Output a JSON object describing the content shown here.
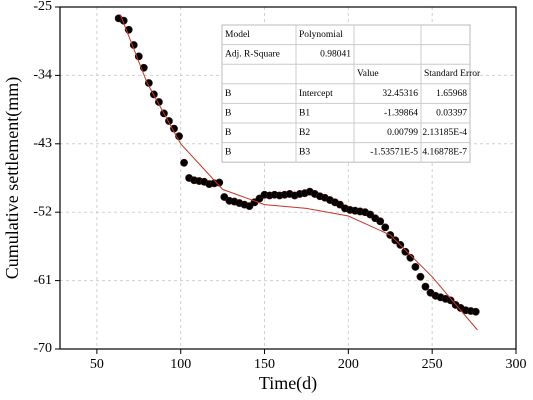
{
  "chart_data": {
    "type": "scatter",
    "x_label": "Time(d)",
    "y_label": "Cumulative settlement(mm)",
    "xlim": [
      28,
      300
    ],
    "xticks": [
      50,
      100,
      150,
      200,
      250,
      300
    ],
    "ylim": [
      -70,
      -25
    ],
    "yticks": [
      -70,
      -61,
      -52,
      -43,
      -34,
      -25
    ],
    "grid": true,
    "series": [
      {
        "type": "scatter",
        "color": "#000000",
        "x": [
          63,
          66,
          69,
          72,
          75,
          78,
          81,
          84,
          87,
          90,
          93,
          96,
          99,
          102,
          105,
          108,
          111,
          114,
          117,
          120,
          123,
          126,
          129,
          132,
          135,
          138,
          141,
          144,
          147,
          150,
          153,
          156,
          159,
          162,
          165,
          168,
          171,
          174,
          177,
          180,
          183,
          186,
          189,
          192,
          195,
          198,
          201,
          204,
          207,
          210,
          213,
          216,
          219,
          222,
          225,
          228,
          231,
          234,
          237,
          240,
          243,
          246,
          249,
          252,
          255,
          258,
          261,
          264,
          267,
          270,
          273,
          276
        ],
        "values": [
          -26.5,
          -26.8,
          -28,
          -30,
          -31.5,
          -33,
          -35,
          -36.5,
          -37.5,
          -39,
          -40,
          -41,
          -42,
          -45.5,
          -47.5,
          -47.8,
          -47.9,
          -48,
          -48.3,
          -48.2,
          -48.1,
          -50,
          -50.5,
          -50.6,
          -50.8,
          -51,
          -51.2,
          -50.7,
          -50.2,
          -49.7,
          -49.8,
          -49.7,
          -49.8,
          -49.7,
          -49.6,
          -49.8,
          -49.6,
          -49.5,
          -49.3,
          -49.6,
          -49.9,
          -50.1,
          -50.4,
          -50.7,
          -51,
          -51.5,
          -51.7,
          -51.8,
          -51.9,
          -52,
          -52.3,
          -52.8,
          -53.2,
          -54,
          -55,
          -55.7,
          -56.3,
          -57.2,
          -58,
          -59.2,
          -60.5,
          -61.8,
          -62.6,
          -63,
          -63.2,
          -63.4,
          -63.6,
          -64.2,
          -64.6,
          -64.9,
          -65,
          -65.1
        ]
      },
      {
        "type": "line",
        "color": "#c0392b",
        "x": [
          64,
          80,
          100,
          125,
          150,
          175,
          200,
          225,
          250,
          277
        ],
        "values": [
          -26,
          -35,
          -43,
          -49,
          -51,
          -51.5,
          -52.5,
          -55,
          -60.5,
          -67.5
        ]
      }
    ],
    "table": {
      "rows": [
        [
          "Model",
          "Polynomial",
          null,
          null
        ],
        [
          "Adj. R-Square",
          "0.98041",
          null,
          null
        ],
        [
          null,
          null,
          "Value",
          "Standard Error"
        ],
        [
          "B",
          "Intercept",
          "32.45316",
          "1.65968"
        ],
        [
          "B",
          "B1",
          "-1.39864",
          "0.03397"
        ],
        [
          "B",
          "B2",
          "0.00799",
          "2.13185E-4"
        ],
        [
          "B",
          "B3",
          "-1.53571E-5",
          "4.16878E-7"
        ]
      ]
    }
  }
}
